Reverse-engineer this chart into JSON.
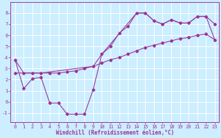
{
  "background_color": "#cceeff",
  "grid_color": "#ffffff",
  "line_color": "#993399",
  "marker_color": "#993399",
  "xlabel": "Windchill (Refroidissement éolien,°C)",
  "xlabel_fontsize": 5.5,
  "tick_fontsize": 5.0,
  "xlim": [
    -0.5,
    23.5
  ],
  "ylim": [
    -1.8,
    9.0
  ],
  "yticks": [
    -1,
    0,
    1,
    2,
    3,
    4,
    5,
    6,
    7,
    8
  ],
  "xticks": [
    0,
    1,
    2,
    3,
    4,
    5,
    6,
    7,
    8,
    9,
    10,
    11,
    12,
    13,
    14,
    15,
    16,
    17,
    18,
    19,
    20,
    21,
    22,
    23
  ],
  "series1_x": [
    0,
    1,
    2,
    3,
    4,
    5,
    6,
    7,
    8,
    9,
    10,
    11,
    12,
    13,
    14,
    15,
    16,
    17,
    18,
    19,
    20,
    21,
    22,
    23
  ],
  "series1_y": [
    3.8,
    1.2,
    2.1,
    2.2,
    -0.1,
    -0.1,
    -1.1,
    -1.1,
    -1.1,
    1.1,
    4.3,
    5.0,
    6.2,
    6.8,
    8.0,
    8.0,
    7.3,
    7.0,
    7.4,
    7.1,
    7.1,
    7.7,
    7.7,
    7.0
  ],
  "series2_x": [
    0,
    1,
    2,
    3,
    4,
    5,
    6,
    7,
    8,
    9,
    10,
    11,
    12,
    13,
    14,
    15,
    16,
    17,
    18,
    19,
    20,
    21,
    22,
    23
  ],
  "series2_y": [
    2.6,
    2.6,
    2.6,
    2.6,
    2.6,
    2.6,
    2.7,
    2.8,
    3.0,
    3.2,
    3.5,
    3.8,
    4.0,
    4.3,
    4.6,
    4.9,
    5.1,
    5.3,
    5.5,
    5.7,
    5.8,
    6.0,
    6.1,
    5.6
  ],
  "series3_x": [
    0,
    1,
    2,
    3,
    9,
    10,
    14,
    15,
    16,
    17,
    18,
    19,
    20,
    21,
    22,
    23
  ],
  "series3_y": [
    3.8,
    2.6,
    2.6,
    2.6,
    3.2,
    4.3,
    8.0,
    8.0,
    7.3,
    7.0,
    7.4,
    7.1,
    7.1,
    7.7,
    7.7,
    5.6
  ]
}
